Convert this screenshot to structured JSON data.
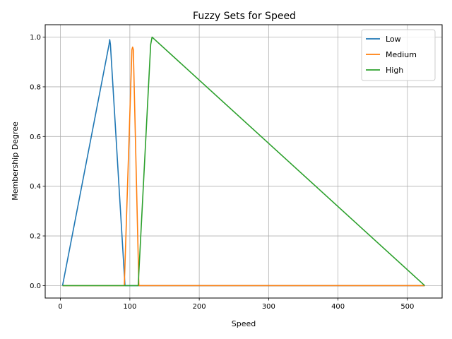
{
  "chart_data": {
    "type": "line",
    "title": "Fuzzy Sets for Speed",
    "xlabel": "Speed",
    "ylabel": "Membership Degree",
    "xlim": [
      -22,
      550
    ],
    "ylim": [
      -0.05,
      1.05
    ],
    "xticks": [
      0,
      100,
      200,
      300,
      400,
      500
    ],
    "yticks": [
      0.0,
      0.2,
      0.4,
      0.6,
      0.8,
      1.0
    ],
    "xtick_labels": [
      "0",
      "100",
      "200",
      "300",
      "400",
      "500"
    ],
    "ytick_labels": [
      "0.0",
      "0.2",
      "0.4",
      "0.6",
      "0.8",
      "1.0"
    ],
    "grid": true,
    "legend_position": "top-right",
    "series": [
      {
        "name": "Low",
        "color": "#1f77b4",
        "x": [
          3,
          70,
          71,
          72,
          93,
          100,
          525
        ],
        "y": [
          0,
          0.97,
          0.99,
          0.97,
          0,
          0,
          0
        ]
      },
      {
        "name": "Medium",
        "color": "#ff7f0e",
        "x": [
          3,
          92,
          103,
          104,
          105,
          113,
          525
        ],
        "y": [
          0,
          0,
          0.95,
          0.96,
          0.95,
          0,
          0
        ]
      },
      {
        "name": "High",
        "color": "#2ca02c",
        "x": [
          3,
          112,
          130,
          132,
          525
        ],
        "y": [
          0,
          0,
          0.97,
          1.0,
          0
        ]
      }
    ]
  }
}
